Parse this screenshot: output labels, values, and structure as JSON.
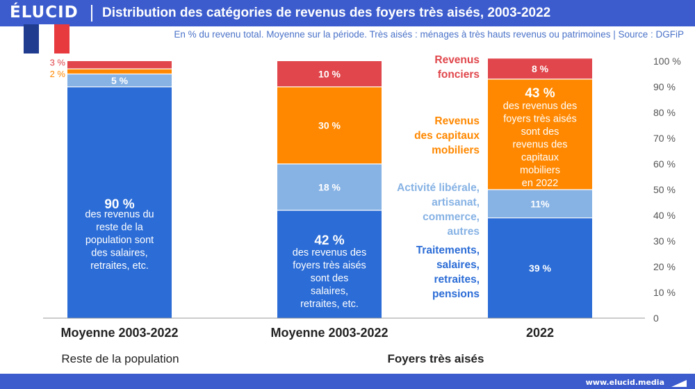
{
  "brand": {
    "logo": "ÉLUCID",
    "url": "www.elucid.media"
  },
  "title": "Distribution des catégories de revenus des foyers très aisés, 2003-2022",
  "subtitle": "En % du revenu total. Moyenne sur la période. Très aisés : ménages à très hauts revenus ou patrimoines  |  Source : DGFiP",
  "colors": {
    "header": "#3c5ccd",
    "traitements": "#2b6cd6",
    "activite": "#86b2e4",
    "capitaux": "#ff8800",
    "fonciers": "#e0464b",
    "axis": "#555555"
  },
  "flag_icon": "flag-france-icon",
  "chart_data": {
    "type": "bar",
    "stacked": true,
    "ylim": [
      0,
      100
    ],
    "yticks": [
      "0",
      "10 %",
      "20 %",
      "30 %",
      "40 %",
      "50 %",
      "60 %",
      "70 %",
      "80 %",
      "90 %",
      "100 %"
    ],
    "axis_side": "right",
    "grid": false,
    "categories": [
      "Moyenne 2003-2022",
      "Moyenne 2003-2022",
      "2022"
    ],
    "groups": [
      {
        "label": "Reste de la population",
        "bold": false,
        "bars": [
          0
        ]
      },
      {
        "label": "Foyers très aisés",
        "bold": true,
        "bars": [
          1,
          2
        ]
      }
    ],
    "series": [
      {
        "name": "Traitements, salaires, retraites, pensions",
        "name_lines": [
          "Traitements,",
          "salaires,",
          "retraites,",
          "pensions"
        ],
        "color": "#2b6cd6",
        "values": [
          90,
          42,
          39
        ]
      },
      {
        "name": "Activité libérale, artisanat, commerce, autres",
        "name_lines": [
          "Activité libérale,",
          "artisanat,",
          "commerce,",
          "autres"
        ],
        "color": "#86b2e4",
        "values": [
          5,
          18,
          11
        ]
      },
      {
        "name": "Revenus des capitaux mobiliers",
        "name_lines": [
          "Revenus",
          "des capitaux",
          "mobiliers"
        ],
        "color": "#ff8800",
        "values": [
          2,
          30,
          43
        ]
      },
      {
        "name": "Revenus fonciers",
        "name_lines": [
          "Revenus",
          "fonciers"
        ],
        "color": "#e0464b",
        "values": [
          3,
          10,
          8
        ]
      }
    ],
    "labels": [
      [
        "90 %",
        "5 %",
        "2 %",
        "3 %"
      ],
      [
        "42 %",
        "18 %",
        "30 %",
        "10 %"
      ],
      [
        "39 %",
        "11%",
        "43 %",
        "8 %"
      ]
    ],
    "annotations": [
      {
        "bar": 0,
        "series": 0,
        "lines": [
          "des revenus du",
          "reste de la",
          "population sont",
          "des salaires,",
          "retraites, etc."
        ]
      },
      {
        "bar": 1,
        "series": 0,
        "lines": [
          "des revenus des",
          "foyers très aisés",
          "sont des",
          "salaires,",
          "retraites, etc."
        ]
      },
      {
        "bar": 2,
        "series": 2,
        "lines": [
          "des revenus des",
          "foyers très aisés",
          "sont des",
          "revenus des",
          "capitaux",
          "mobiliers",
          "en 2022"
        ]
      }
    ]
  }
}
